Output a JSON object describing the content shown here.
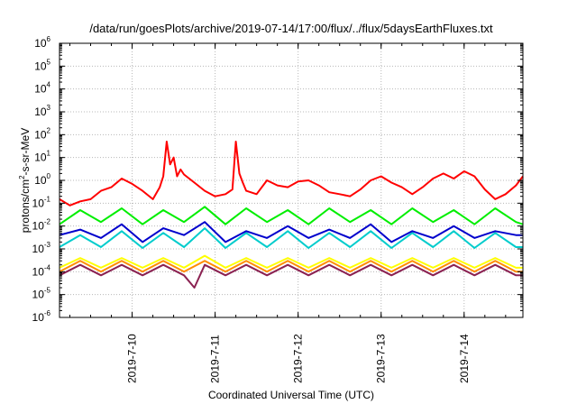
{
  "chart_data": {
    "type": "line",
    "title": "/data/run/goesPlots/archive/2019-07-14/17:00/flux/../flux/5daysEarthFluxes.txt",
    "xlabel": "Coordinated Universal Time (UTC)",
    "ylabel_parts": [
      "protons/cm",
      "2",
      "-s-sr-MeV"
    ],
    "y_scale": "log",
    "ylim": [
      1e-06,
      1000000.0
    ],
    "y_ticks": [
      {
        "base": "10",
        "exp": "-6"
      },
      {
        "base": "10",
        "exp": "-5"
      },
      {
        "base": "10",
        "exp": "-4"
      },
      {
        "base": "10",
        "exp": "-3"
      },
      {
        "base": "10",
        "exp": "-2"
      },
      {
        "base": "10",
        "exp": "-1"
      },
      {
        "base": "10",
        "exp": "0"
      },
      {
        "base": "10",
        "exp": "1"
      },
      {
        "base": "10",
        "exp": "2"
      },
      {
        "base": "10",
        "exp": "3"
      },
      {
        "base": "10",
        "exp": "4"
      },
      {
        "base": "10",
        "exp": "5"
      },
      {
        "base": "10",
        "exp": "6"
      }
    ],
    "xlim": [
      "2019-07-09 03:00",
      "2019-07-14 17:00"
    ],
    "x_ticks": [
      "2019-7-10",
      "2019-7-11",
      "2019-7-12",
      "2019-7-13",
      "2019-7-14"
    ],
    "grid": true,
    "series": [
      {
        "color": "#ff0000",
        "x": [
          "2019-07-09 03:00",
          "2019-07-09 06:00",
          "2019-07-09 09:00",
          "2019-07-09 12:00",
          "2019-07-09 15:00",
          "2019-07-09 18:00",
          "2019-07-09 21:00",
          "2019-07-10 00:00",
          "2019-07-10 03:00",
          "2019-07-10 06:00",
          "2019-07-10 08:00",
          "2019-07-10 09:00",
          "2019-07-10 10:00",
          "2019-07-10 11:00",
          "2019-07-10 12:00",
          "2019-07-10 13:00",
          "2019-07-10 14:00",
          "2019-07-10 15:00",
          "2019-07-10 18:00",
          "2019-07-10 21:00",
          "2019-07-11 00:00",
          "2019-07-11 03:00",
          "2019-07-11 05:00",
          "2019-07-11 06:00",
          "2019-07-11 07:00",
          "2019-07-11 08:00",
          "2019-07-11 09:00",
          "2019-07-11 12:00",
          "2019-07-11 15:00",
          "2019-07-11 18:00",
          "2019-07-11 21:00",
          "2019-07-12 00:00",
          "2019-07-12 03:00",
          "2019-07-12 06:00",
          "2019-07-12 09:00",
          "2019-07-12 12:00",
          "2019-07-12 15:00",
          "2019-07-12 18:00",
          "2019-07-12 21:00",
          "2019-07-13 00:00",
          "2019-07-13 03:00",
          "2019-07-13 06:00",
          "2019-07-13 09:00",
          "2019-07-13 12:00",
          "2019-07-13 15:00",
          "2019-07-13 18:00",
          "2019-07-13 21:00",
          "2019-07-14 00:00",
          "2019-07-14 03:00",
          "2019-07-14 06:00",
          "2019-07-14 09:00",
          "2019-07-14 12:00",
          "2019-07-14 15:00",
          "2019-07-14 17:00"
        ],
        "values": [
          0.15,
          0.08,
          0.12,
          0.15,
          0.35,
          0.5,
          1.2,
          0.7,
          0.35,
          0.15,
          0.5,
          1.5,
          50,
          5,
          10,
          1.5,
          3,
          1.8,
          0.8,
          0.35,
          0.2,
          0.25,
          0.4,
          50,
          2,
          0.8,
          0.35,
          0.25,
          1.0,
          0.6,
          0.5,
          0.9,
          1.0,
          0.6,
          0.3,
          0.25,
          0.2,
          0.4,
          1.0,
          1.5,
          0.8,
          0.5,
          0.25,
          0.5,
          1.2,
          2.0,
          1.2,
          2.5,
          1.5,
          0.4,
          0.15,
          0.25,
          0.6,
          1.5
        ]
      },
      {
        "color": "#00ee00",
        "x": [
          "2019-07-09 03:00",
          "2019-07-09 09:00",
          "2019-07-09 15:00",
          "2019-07-09 21:00",
          "2019-07-10 03:00",
          "2019-07-10 09:00",
          "2019-07-10 15:00",
          "2019-07-10 21:00",
          "2019-07-11 03:00",
          "2019-07-11 09:00",
          "2019-07-11 15:00",
          "2019-07-11 21:00",
          "2019-07-12 03:00",
          "2019-07-12 09:00",
          "2019-07-12 15:00",
          "2019-07-12 21:00",
          "2019-07-13 03:00",
          "2019-07-13 09:00",
          "2019-07-13 15:00",
          "2019-07-13 21:00",
          "2019-07-14 03:00",
          "2019-07-14 09:00",
          "2019-07-14 15:00",
          "2019-07-14 17:00"
        ],
        "values": [
          0.012,
          0.05,
          0.015,
          0.06,
          0.012,
          0.05,
          0.015,
          0.07,
          0.012,
          0.06,
          0.015,
          0.05,
          0.012,
          0.06,
          0.015,
          0.05,
          0.012,
          0.06,
          0.015,
          0.05,
          0.012,
          0.06,
          0.015,
          0.012
        ]
      },
      {
        "color": "#0000cc",
        "x": [
          "2019-07-09 03:00",
          "2019-07-09 09:00",
          "2019-07-09 15:00",
          "2019-07-09 21:00",
          "2019-07-10 03:00",
          "2019-07-10 09:00",
          "2019-07-10 15:00",
          "2019-07-10 21:00",
          "2019-07-11 03:00",
          "2019-07-11 09:00",
          "2019-07-11 15:00",
          "2019-07-11 21:00",
          "2019-07-12 03:00",
          "2019-07-12 09:00",
          "2019-07-12 15:00",
          "2019-07-12 21:00",
          "2019-07-13 03:00",
          "2019-07-13 09:00",
          "2019-07-13 15:00",
          "2019-07-13 21:00",
          "2019-07-14 03:00",
          "2019-07-14 09:00",
          "2019-07-14 15:00",
          "2019-07-14 17:00"
        ],
        "values": [
          0.004,
          0.007,
          0.003,
          0.012,
          0.002,
          0.008,
          0.004,
          0.015,
          0.002,
          0.006,
          0.003,
          0.01,
          0.003,
          0.007,
          0.003,
          0.012,
          0.002,
          0.006,
          0.003,
          0.01,
          0.003,
          0.006,
          0.004,
          0.004
        ]
      },
      {
        "color": "#00cccc",
        "x": [
          "2019-07-09 03:00",
          "2019-07-09 09:00",
          "2019-07-09 15:00",
          "2019-07-09 21:00",
          "2019-07-10 03:00",
          "2019-07-10 09:00",
          "2019-07-10 15:00",
          "2019-07-10 21:00",
          "2019-07-11 03:00",
          "2019-07-11 09:00",
          "2019-07-11 15:00",
          "2019-07-11 21:00",
          "2019-07-12 03:00",
          "2019-07-12 09:00",
          "2019-07-12 15:00",
          "2019-07-12 21:00",
          "2019-07-13 03:00",
          "2019-07-13 09:00",
          "2019-07-13 15:00",
          "2019-07-13 21:00",
          "2019-07-14 03:00",
          "2019-07-14 09:00",
          "2019-07-14 15:00",
          "2019-07-14 17:00"
        ],
        "values": [
          0.0012,
          0.004,
          0.0012,
          0.006,
          0.0011,
          0.005,
          0.0012,
          0.008,
          0.0011,
          0.005,
          0.0012,
          0.006,
          0.0011,
          0.005,
          0.0012,
          0.006,
          0.0011,
          0.005,
          0.0012,
          0.006,
          0.0011,
          0.005,
          0.0012,
          0.0012
        ]
      },
      {
        "color": "#ffff00",
        "x": [
          "2019-07-09 03:00",
          "2019-07-09 09:00",
          "2019-07-09 15:00",
          "2019-07-09 21:00",
          "2019-07-10 03:00",
          "2019-07-10 09:00",
          "2019-07-10 15:00",
          "2019-07-10 21:00",
          "2019-07-11 03:00",
          "2019-07-11 09:00",
          "2019-07-11 15:00",
          "2019-07-11 21:00",
          "2019-07-12 03:00",
          "2019-07-12 09:00",
          "2019-07-12 15:00",
          "2019-07-12 21:00",
          "2019-07-13 03:00",
          "2019-07-13 09:00",
          "2019-07-13 15:00",
          "2019-07-13 21:00",
          "2019-07-14 03:00",
          "2019-07-14 09:00",
          "2019-07-14 15:00",
          "2019-07-14 17:00"
        ],
        "values": [
          0.00015,
          0.0004,
          0.00015,
          0.0004,
          0.00015,
          0.0004,
          0.00015,
          0.0005,
          0.00015,
          0.0004,
          0.00015,
          0.0004,
          0.00015,
          0.0004,
          0.00015,
          0.0004,
          0.00015,
          0.0004,
          0.00015,
          0.0004,
          0.00015,
          0.0004,
          0.00015,
          0.00015
        ]
      },
      {
        "color": "#ff8c00",
        "x": [
          "2019-07-09 03:00",
          "2019-07-09 09:00",
          "2019-07-09 15:00",
          "2019-07-09 21:00",
          "2019-07-10 03:00",
          "2019-07-10 09:00",
          "2019-07-10 15:00",
          "2019-07-10 21:00",
          "2019-07-11 03:00",
          "2019-07-11 09:00",
          "2019-07-11 15:00",
          "2019-07-11 21:00",
          "2019-07-12 03:00",
          "2019-07-12 09:00",
          "2019-07-12 15:00",
          "2019-07-12 21:00",
          "2019-07-13 03:00",
          "2019-07-13 09:00",
          "2019-07-13 15:00",
          "2019-07-13 21:00",
          "2019-07-14 03:00",
          "2019-07-14 09:00",
          "2019-07-14 15:00",
          "2019-07-14 17:00"
        ],
        "values": [
          0.0001,
          0.0003,
          0.0001,
          0.0003,
          0.0001,
          0.0003,
          0.0001,
          0.0003,
          0.0001,
          0.0003,
          0.0001,
          0.0003,
          0.0001,
          0.0003,
          0.0001,
          0.0003,
          0.0001,
          0.0003,
          0.0001,
          0.0003,
          0.0001,
          0.0003,
          0.0001,
          0.0001
        ]
      },
      {
        "color": "#8b2252",
        "x": [
          "2019-07-09 03:00",
          "2019-07-09 09:00",
          "2019-07-09 15:00",
          "2019-07-09 21:00",
          "2019-07-10 03:00",
          "2019-07-10 09:00",
          "2019-07-10 15:00",
          "2019-07-10 18:00",
          "2019-07-10 21:00",
          "2019-07-11 03:00",
          "2019-07-11 09:00",
          "2019-07-11 15:00",
          "2019-07-11 21:00",
          "2019-07-12 03:00",
          "2019-07-12 09:00",
          "2019-07-12 15:00",
          "2019-07-12 21:00",
          "2019-07-13 03:00",
          "2019-07-13 09:00",
          "2019-07-13 15:00",
          "2019-07-13 21:00",
          "2019-07-14 03:00",
          "2019-07-14 09:00",
          "2019-07-14 15:00",
          "2019-07-14 17:00"
        ],
        "values": [
          7e-05,
          0.0002,
          7e-05,
          0.0002,
          7e-05,
          0.0002,
          7e-05,
          2e-05,
          0.0002,
          7e-05,
          0.0002,
          7e-05,
          0.0002,
          7e-05,
          0.0002,
          7e-05,
          0.0002,
          7e-05,
          0.0002,
          7e-05,
          0.0002,
          7e-05,
          0.0002,
          7e-05,
          7e-05
        ]
      }
    ]
  }
}
